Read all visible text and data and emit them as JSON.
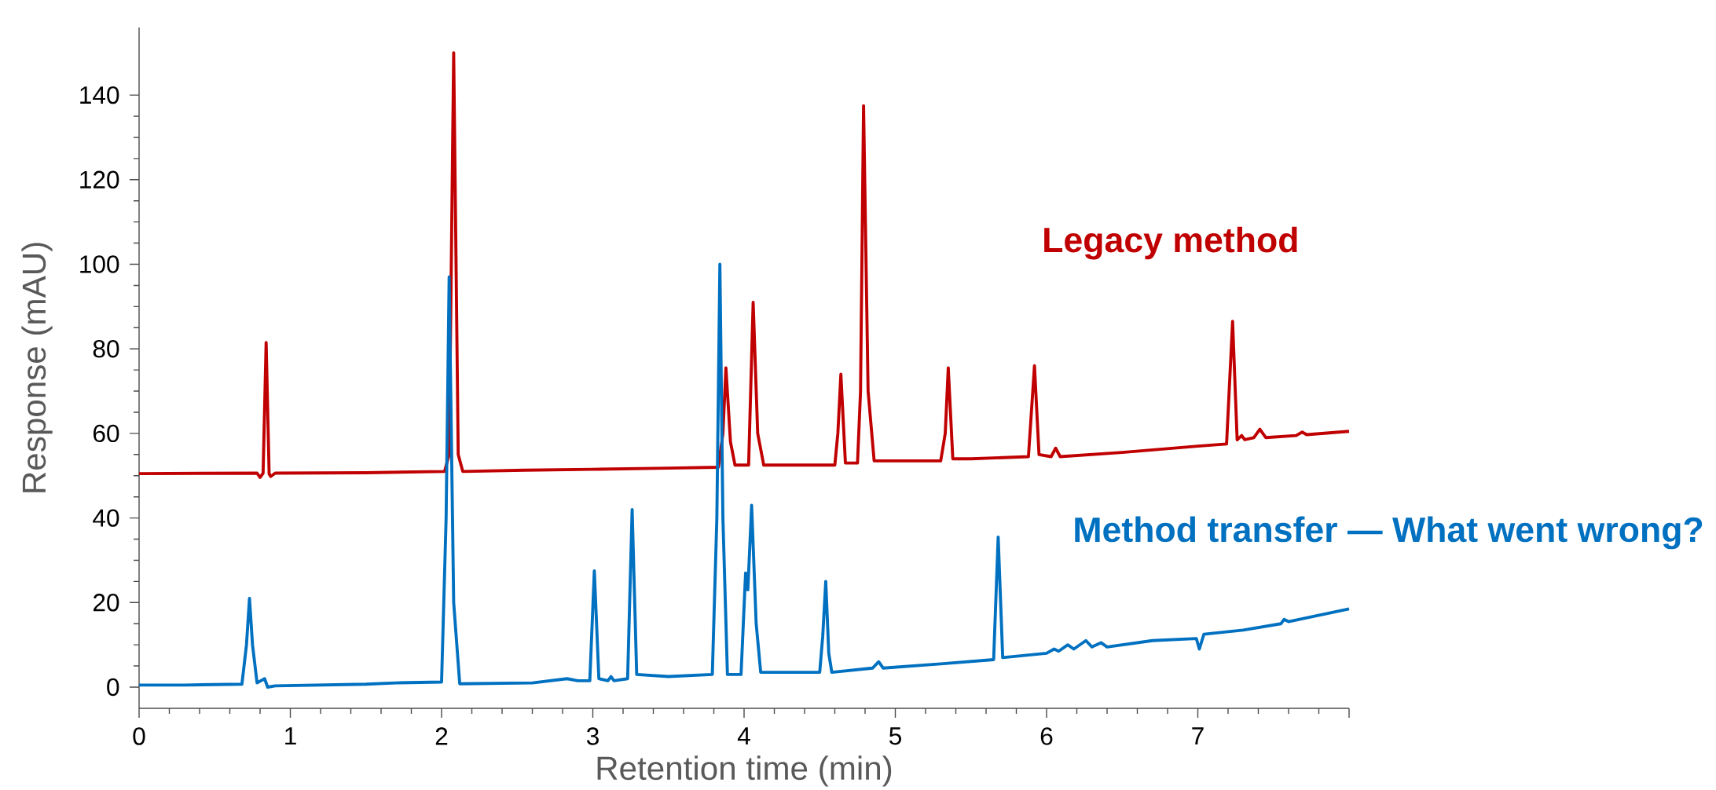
{
  "chart_data": {
    "type": "line",
    "xlabel": "Retention time (min)",
    "ylabel": "Response (mAU)",
    "xlim": [
      0,
      8
    ],
    "ylim": [
      -5,
      156
    ],
    "xticks": [
      0,
      1,
      2,
      3,
      4,
      5,
      6,
      7,
      {
        "value": 8,
        "label": null
      }
    ],
    "yticks": [
      0,
      20,
      40,
      60,
      80,
      100,
      120,
      140
    ],
    "series": [
      {
        "name": "Legacy method",
        "color": "#c00000",
        "x": [
          0,
          0.78,
          0.8,
          0.82,
          0.84,
          0.86,
          0.87,
          0.9,
          1.5,
          2.02,
          2.05,
          2.08,
          2.11,
          2.14,
          2.55,
          3.0,
          3.5,
          3.83,
          3.86,
          3.88,
          3.91,
          3.94,
          4.03,
          4.06,
          4.09,
          4.13,
          4.6,
          4.62,
          4.64,
          4.67,
          4.75,
          4.77,
          4.79,
          4.82,
          4.86,
          5.3,
          5.33,
          5.35,
          5.38,
          5.5,
          5.88,
          5.92,
          5.95,
          6.03,
          6.06,
          6.09,
          6.5,
          7.0,
          7.19,
          7.23,
          7.26,
          7.29,
          7.31,
          7.37,
          7.41,
          7.45,
          7.65,
          7.69,
          7.72,
          8.0
        ],
        "values": [
          50.5,
          50.6,
          49.6,
          50.6,
          81.5,
          50.4,
          49.8,
          50.6,
          50.7,
          51,
          55,
          150,
          55,
          51,
          51.3,
          51.5,
          51.8,
          52,
          60,
          75.5,
          58,
          52.5,
          52.5,
          91,
          60,
          52.5,
          52.5,
          60,
          74,
          53,
          53,
          70,
          137.5,
          70,
          53.5,
          53.5,
          60,
          75.5,
          54,
          54,
          54.5,
          76,
          55,
          54.5,
          56.5,
          54.5,
          55.5,
          57,
          57.5,
          86.5,
          58.5,
          59.5,
          58.5,
          59,
          61,
          59,
          59.5,
          60.3,
          59.7,
          60.5
        ]
      },
      {
        "name": "Method transfer — What went wrong?",
        "color": "#0070c0",
        "x": [
          0,
          0.3,
          0.68,
          0.71,
          0.73,
          0.75,
          0.78,
          0.83,
          0.85,
          0.9,
          1.5,
          1.7,
          2.0,
          2.03,
          2.05,
          2.08,
          2.12,
          2.6,
          2.83,
          2.9,
          2.98,
          3.01,
          3.04,
          3.1,
          3.12,
          3.14,
          3.23,
          3.26,
          3.29,
          3.5,
          3.79,
          3.82,
          3.84,
          3.86,
          3.89,
          3.98,
          4.01,
          4.025,
          4.05,
          4.08,
          4.11,
          4.5,
          4.52,
          4.54,
          4.56,
          4.58,
          4.85,
          4.89,
          4.92,
          5.3,
          5.65,
          5.68,
          5.71,
          6.0,
          6.05,
          6.08,
          6.14,
          6.18,
          6.26,
          6.3,
          6.36,
          6.4,
          6.7,
          6.99,
          7.01,
          7.04,
          7.3,
          7.55,
          7.57,
          7.6,
          8.0
        ],
        "values": [
          0.5,
          0.5,
          0.7,
          10,
          21,
          10,
          1,
          2,
          0,
          0.3,
          0.7,
          1,
          1.2,
          40,
          97,
          20,
          0.8,
          1,
          2,
          1.5,
          1.5,
          27.5,
          2,
          1.5,
          2.5,
          1.5,
          2,
          42,
          3,
          2.5,
          3,
          40,
          100,
          40,
          3,
          3,
          27,
          23,
          43,
          15,
          3.5,
          3.5,
          12,
          25,
          8,
          3.5,
          4.5,
          6,
          4.5,
          5.5,
          6.5,
          35.5,
          7,
          8,
          9,
          8.5,
          10,
          9,
          11,
          9.5,
          10.5,
          9.5,
          11,
          11.5,
          9,
          12.5,
          13.5,
          15,
          16,
          15.5,
          18.5
        ]
      }
    ]
  }
}
